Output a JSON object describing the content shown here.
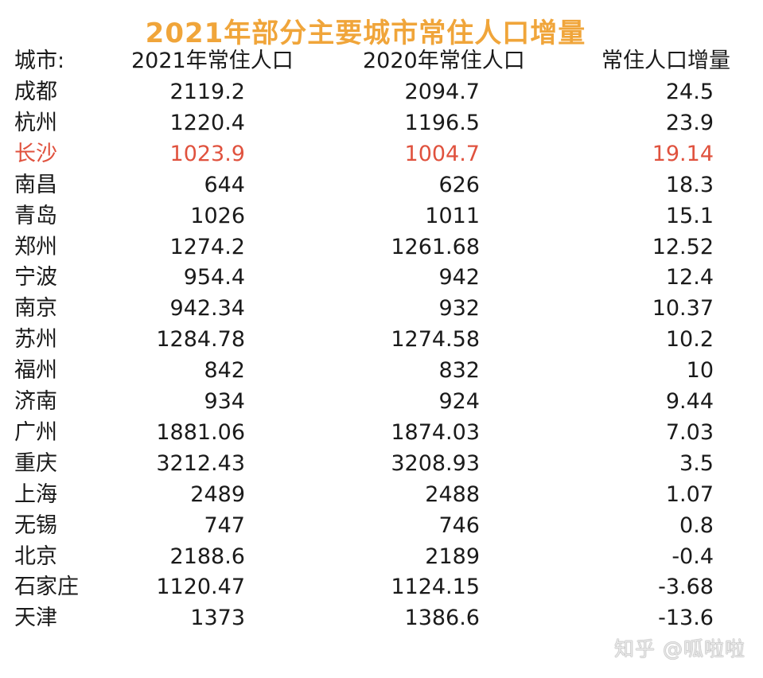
{
  "title": "2021年部分主要城市常住人口增量",
  "headers": {
    "city": "城市:",
    "pop2021": "2021年常住人口",
    "pop2020": "2020年常住人口",
    "increase": "常住人口增量"
  },
  "highlight_color": "#e0523e",
  "title_color": "#f0a53a",
  "rows": [
    {
      "city": "成都",
      "pop2021": "2119.2",
      "pop2020": "2094.7",
      "increase": "24.5"
    },
    {
      "city": "杭州",
      "pop2021": "1220.4",
      "pop2020": "1196.5",
      "increase": "23.9"
    },
    {
      "city": "长沙",
      "pop2021": "1023.9",
      "pop2020": "1004.7",
      "increase": "19.14",
      "highlight": true
    },
    {
      "city": "南昌",
      "pop2021": "644",
      "pop2020": "626",
      "increase": "18.3"
    },
    {
      "city": "青岛",
      "pop2021": "1026",
      "pop2020": "1011",
      "increase": "15.1"
    },
    {
      "city": "郑州",
      "pop2021": "1274.2",
      "pop2020": "1261.68",
      "increase": "12.52"
    },
    {
      "city": "宁波",
      "pop2021": "954.4",
      "pop2020": "942",
      "increase": "12.4"
    },
    {
      "city": "南京",
      "pop2021": "942.34",
      "pop2020": "932",
      "increase": "10.37"
    },
    {
      "city": "苏州",
      "pop2021": "1284.78",
      "pop2020": "1274.58",
      "increase": "10.2"
    },
    {
      "city": "福州",
      "pop2021": "842",
      "pop2020": "832",
      "increase": "10"
    },
    {
      "city": "济南",
      "pop2021": "934",
      "pop2020": "924",
      "increase": "9.44"
    },
    {
      "city": "广州",
      "pop2021": "1881.06",
      "pop2020": "1874.03",
      "increase": "7.03"
    },
    {
      "city": "重庆",
      "pop2021": "3212.43",
      "pop2020": "3208.93",
      "increase": "3.5"
    },
    {
      "city": "上海",
      "pop2021": "2489",
      "pop2020": "2488",
      "increase": "1.07"
    },
    {
      "city": "无锡",
      "pop2021": "747",
      "pop2020": "746",
      "increase": "0.8"
    },
    {
      "city": "北京",
      "pop2021": "2188.6",
      "pop2020": "2189",
      "increase": "-0.4"
    },
    {
      "city": "石家庄",
      "pop2021": "1120.47",
      "pop2020": "1124.15",
      "increase": "-3.68"
    },
    {
      "city": "天津",
      "pop2021": "1373",
      "pop2020": "1386.6",
      "increase": "-13.6"
    }
  ],
  "watermark": "知乎 @呱啦啦"
}
